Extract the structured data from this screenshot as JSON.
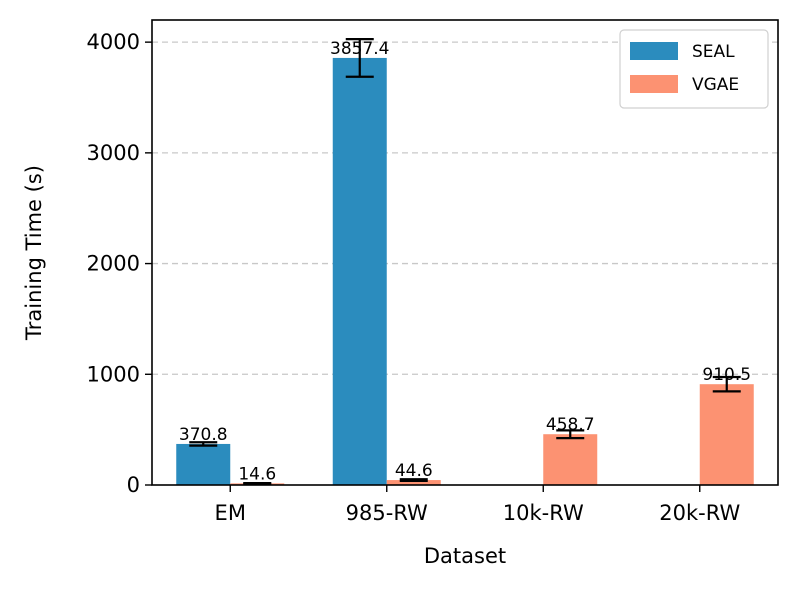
{
  "chart_data": {
    "type": "bar",
    "title": "",
    "xlabel": "Dataset",
    "ylabel": "Training Time (s)",
    "categories": [
      "EM",
      "985-RW",
      "10k-RW",
      "20k-RW"
    ],
    "ylim": [
      0,
      4200
    ],
    "yticks": [
      0,
      1000,
      2000,
      3000,
      4000
    ],
    "grid": "y-dashed",
    "legend_position": "top-right",
    "series": [
      {
        "name": "SEAL",
        "color": "#2b8cbe",
        "values": [
          370.8,
          3857.4,
          null,
          null
        ],
        "errors": [
          15,
          170,
          null,
          null
        ],
        "labels": [
          "370.8",
          "3857.4",
          null,
          null
        ]
      },
      {
        "name": "VGAE",
        "color": "#fc9272",
        "values": [
          14.6,
          44.6,
          458.7,
          910.5
        ],
        "errors": [
          3,
          8,
          35,
          65
        ],
        "labels": [
          "14.6",
          "44.6",
          "458.7",
          "910.5"
        ]
      }
    ]
  }
}
